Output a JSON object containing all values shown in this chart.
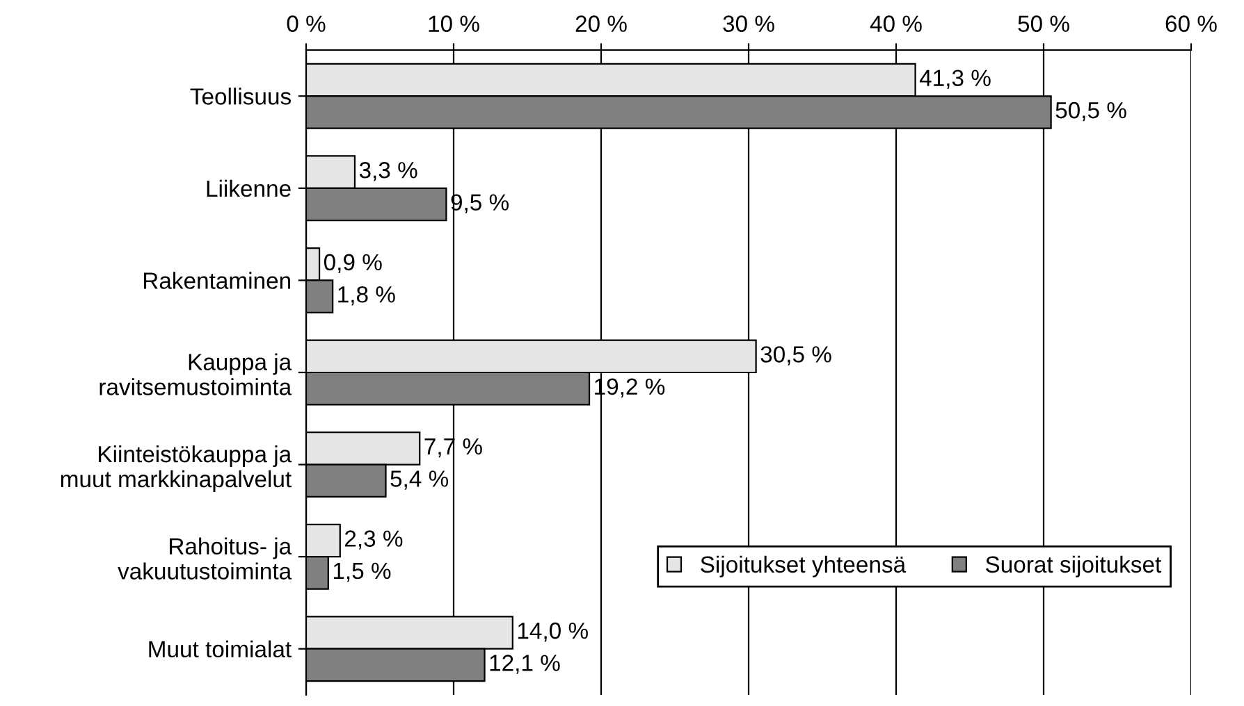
{
  "chart_data": {
    "type": "bar",
    "orientation": "horizontal",
    "categories": [
      "Teollisuus",
      "Liikenne",
      "Rakentaminen",
      "Kauppa ja\nravitsemustoiminta",
      "Kiinteistökauppa ja\nmuut markkinapalvelut",
      "Rahoitus- ja\nvakuutustoiminta",
      "Muut toimialat"
    ],
    "series": [
      {
        "name": "Sijoitukset yhteensä",
        "color": "#e6e6e6",
        "values": [
          41.3,
          3.3,
          0.9,
          30.5,
          7.7,
          2.3,
          14.0
        ],
        "value_labels": [
          "41,3 %",
          "3,3 %",
          "0,9 %",
          "30,5 %",
          "7,7 %",
          "2,3 %",
          "14,0 %"
        ]
      },
      {
        "name": "Suorat sijoitukset",
        "color": "#808080",
        "values": [
          50.5,
          9.5,
          1.8,
          19.2,
          5.4,
          1.5,
          12.1
        ],
        "value_labels": [
          "50,5 %",
          "9,5 %",
          "1,8 %",
          "19,2 %",
          "5,4 %",
          "1,5 %",
          "12,1 %"
        ]
      }
    ],
    "xlim": [
      0,
      60
    ],
    "xticks": [
      {
        "value": 0,
        "label": "0 %"
      },
      {
        "value": 10,
        "label": "10 %"
      },
      {
        "value": 20,
        "label": "20 %"
      },
      {
        "value": 30,
        "label": "30 %"
      },
      {
        "value": 40,
        "label": "40 %"
      },
      {
        "value": 50,
        "label": "50 %"
      },
      {
        "value": 60,
        "label": "60 %"
      }
    ],
    "grid": "x",
    "legend": "bottom right"
  }
}
